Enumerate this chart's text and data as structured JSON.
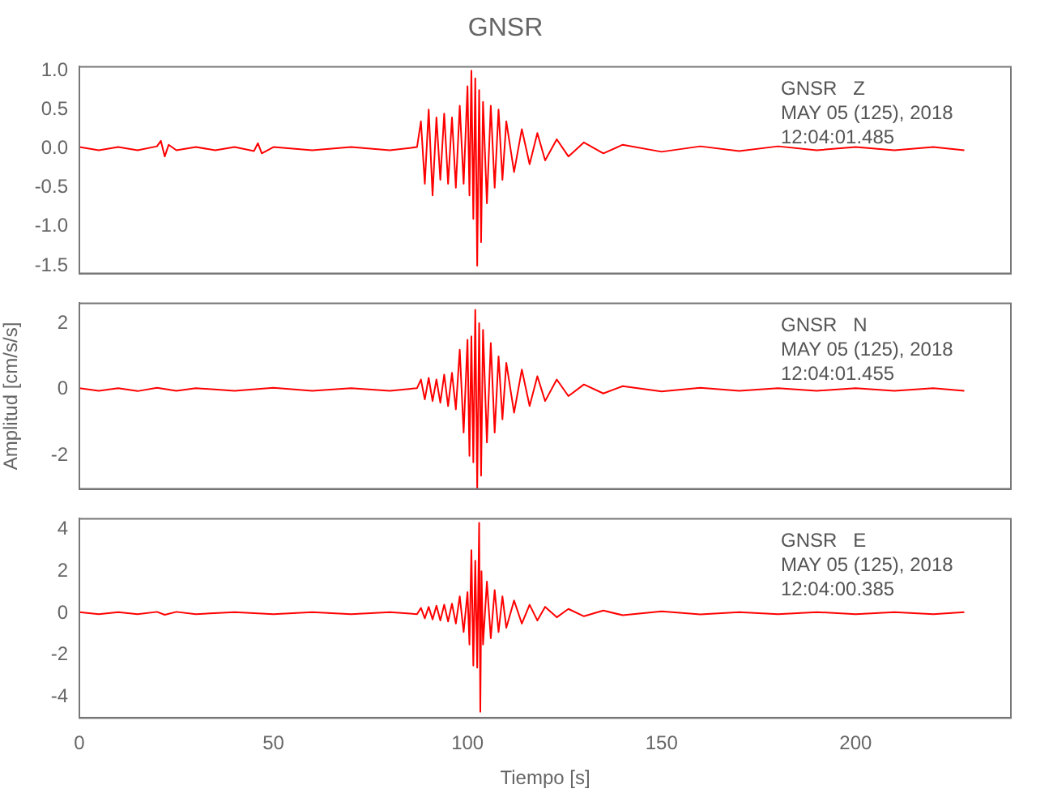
{
  "chart_data": [
    {
      "type": "line",
      "title": "GNSR",
      "color": "#ff0000",
      "marker": "none",
      "line_style": "solid",
      "grid": false,
      "legend": false,
      "tick_labels": "y",
      "xlim": [
        0,
        240
      ],
      "xticks": [
        0,
        50,
        100,
        150,
        200
      ],
      "ylim": [
        -1.6,
        1.05
      ],
      "yticks": [
        {
          "value": 1,
          "label": "1.0"
        },
        {
          "value": 0.5,
          "label": "0.5"
        },
        {
          "value": 0,
          "label": "0.0"
        },
        {
          "value": -0.5,
          "label": "-0.5"
        },
        {
          "value": -1,
          "label": "-1.0"
        },
        {
          "value": -1.5,
          "label": "-1.5"
        }
      ],
      "annotations": [
        "GNSR   Z",
        "MAY 05 (125), 2018",
        "12:04:01.485"
      ],
      "x": [
        0,
        5,
        10,
        15,
        20,
        21,
        22,
        23,
        25,
        30,
        35,
        40,
        45,
        46,
        47,
        50,
        60,
        70,
        80,
        87,
        88,
        89,
        90,
        91,
        92,
        93,
        94,
        95,
        96,
        97,
        98,
        99,
        100,
        100.5,
        101,
        101.5,
        102,
        102.5,
        103,
        103.5,
        104,
        105,
        106,
        107,
        108,
        109,
        110,
        112,
        114,
        116,
        118,
        120,
        123,
        126,
        130,
        135,
        140,
        150,
        160,
        170,
        180,
        190,
        200,
        210,
        220,
        228
      ],
      "values": [
        0.02,
        -0.02,
        0.02,
        -0.02,
        0.03,
        0.1,
        -0.1,
        0.05,
        -0.02,
        0.02,
        -0.02,
        0.02,
        -0.03,
        0.07,
        -0.06,
        0.02,
        -0.02,
        0.02,
        -0.02,
        0.02,
        0.35,
        -0.45,
        0.5,
        -0.6,
        0.4,
        -0.4,
        0.45,
        -0.45,
        0.4,
        -0.5,
        0.55,
        -0.45,
        0.8,
        -0.6,
        1.0,
        -0.9,
        0.9,
        -1.5,
        0.75,
        -1.2,
        0.6,
        -0.7,
        0.55,
        -0.5,
        0.5,
        -0.4,
        0.35,
        -0.3,
        0.25,
        -0.2,
        0.2,
        -0.15,
        0.12,
        -0.1,
        0.08,
        -0.06,
        0.05,
        -0.04,
        0.03,
        -0.03,
        0.03,
        -0.02,
        0.02,
        -0.02,
        0.02,
        -0.02
      ]
    },
    {
      "type": "line",
      "ylabel": "Amplitud [cm/s/s]",
      "color": "#ff0000",
      "marker": "none",
      "line_style": "solid",
      "grid": false,
      "legend": false,
      "tick_labels": "y",
      "xlim": [
        0,
        240
      ],
      "xticks": [
        0,
        50,
        100,
        150,
        200
      ],
      "ylim": [
        -3,
        2.6
      ],
      "yticks": [
        -2,
        0,
        2
      ],
      "annotations": [
        "GNSR   N",
        "MAY 05 (125), 2018",
        "12:04:01.455"
      ],
      "x": [
        0,
        5,
        10,
        15,
        20,
        25,
        30,
        40,
        50,
        60,
        70,
        80,
        87,
        88,
        89,
        90,
        91,
        92,
        93,
        94,
        95,
        96,
        97,
        98,
        99,
        100,
        100.5,
        101,
        101.5,
        102,
        102.5,
        103,
        103.5,
        104,
        105,
        106,
        107,
        108,
        109,
        110,
        112,
        114,
        116,
        118,
        120,
        123,
        126,
        130,
        135,
        140,
        150,
        160,
        170,
        180,
        190,
        200,
        210,
        220,
        228
      ],
      "values": [
        0.04,
        -0.04,
        0.04,
        -0.05,
        0.05,
        -0.04,
        0.04,
        -0.04,
        0.05,
        -0.04,
        0.04,
        -0.04,
        0.04,
        0.3,
        -0.3,
        0.35,
        -0.35,
        0.3,
        -0.4,
        0.45,
        -0.5,
        0.5,
        -0.6,
        1.2,
        -1.3,
        1.5,
        -2.0,
        1.6,
        -2.2,
        2.4,
        -3.0,
        2.0,
        -2.6,
        1.8,
        -1.6,
        1.4,
        -1.3,
        1.0,
        -0.9,
        0.8,
        -0.7,
        0.6,
        -0.5,
        0.4,
        -0.35,
        0.3,
        -0.2,
        0.15,
        -0.12,
        0.1,
        -0.06,
        0.05,
        -0.04,
        0.04,
        -0.04,
        0.04,
        -0.04,
        0.04,
        -0.04
      ]
    },
    {
      "type": "line",
      "xlabel": "Tiempo [s]",
      "color": "#ff0000",
      "marker": "none",
      "line_style": "solid",
      "grid": false,
      "legend": false,
      "xlim": [
        0,
        240
      ],
      "xticks": [
        0,
        50,
        100,
        150,
        200
      ],
      "ylim": [
        -5,
        4.5
      ],
      "yticks": [
        -4,
        -2,
        0,
        2,
        4
      ],
      "annotations": [
        "GNSR   E",
        "MAY 05 (125), 2018",
        "12:04:00.385"
      ],
      "x": [
        0,
        5,
        10,
        15,
        20,
        22,
        25,
        30,
        40,
        50,
        60,
        70,
        80,
        87,
        88,
        89,
        90,
        91,
        92,
        93,
        94,
        95,
        96,
        97,
        98,
        99,
        100,
        100.5,
        101,
        101.5,
        102,
        102.5,
        103,
        103.3,
        103.6,
        104,
        105,
        106,
        107,
        108,
        109,
        110,
        112,
        114,
        116,
        118,
        120,
        123,
        126,
        130,
        135,
        140,
        150,
        160,
        170,
        180,
        190,
        200,
        210,
        220,
        228
      ],
      "values": [
        0.05,
        -0.05,
        0.05,
        -0.05,
        0.06,
        -0.08,
        0.06,
        -0.05,
        0.05,
        -0.05,
        0.05,
        -0.05,
        0.05,
        -0.05,
        0.25,
        -0.25,
        0.3,
        -0.3,
        0.35,
        -0.35,
        0.4,
        -0.4,
        0.45,
        -0.5,
        0.8,
        -0.9,
        1.0,
        -1.5,
        3.0,
        -2.5,
        2.5,
        -2.6,
        4.3,
        -4.7,
        2.0,
        -1.5,
        1.5,
        -1.2,
        1.1,
        -0.9,
        0.8,
        -0.7,
        0.6,
        -0.5,
        0.4,
        -0.35,
        0.3,
        -0.2,
        0.2,
        -0.15,
        0.12,
        -0.1,
        0.08,
        -0.06,
        0.05,
        -0.05,
        0.05,
        -0.05,
        0.05,
        -0.05,
        0.05
      ]
    }
  ]
}
